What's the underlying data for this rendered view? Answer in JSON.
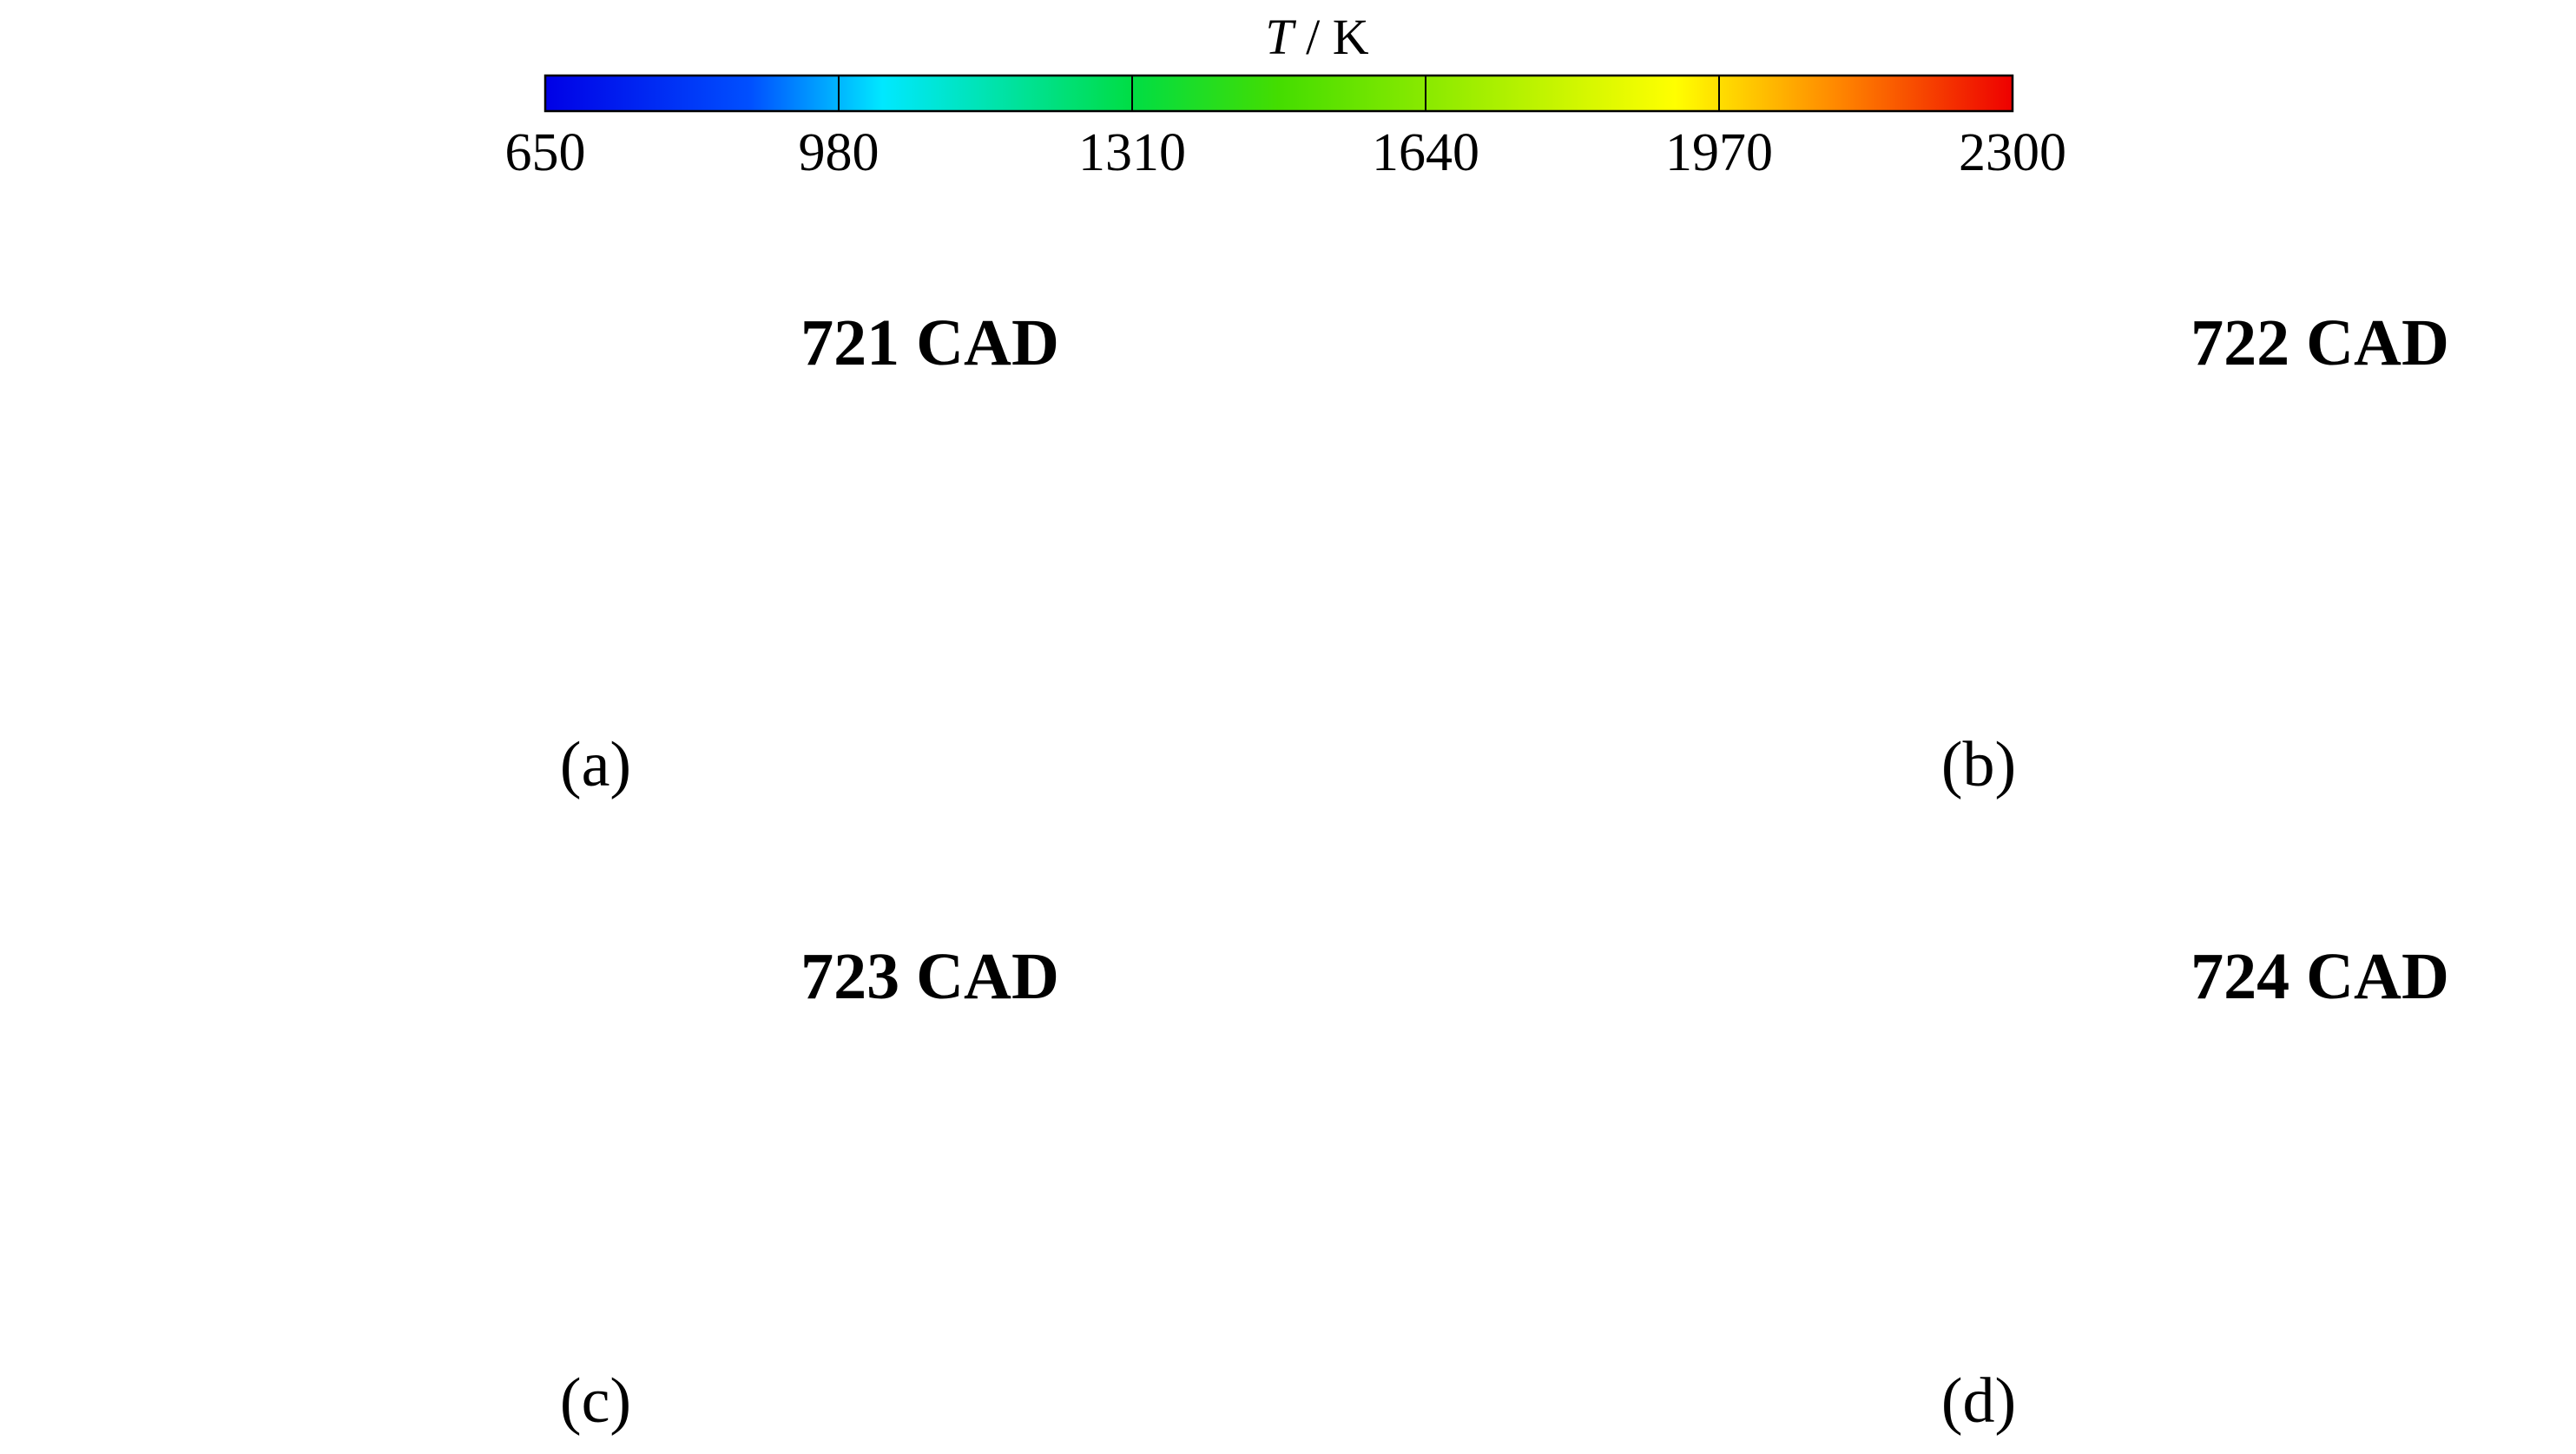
{
  "colorbar": {
    "title_italic": "T",
    "title_rest": " / K",
    "ticks": [
      "650",
      "980",
      "1310",
      "1640",
      "1970",
      "2300"
    ],
    "gradient": [
      "#0000e6",
      "#0050ff",
      "#00e8ff",
      "#00dd44",
      "#44dd00",
      "#ffff00",
      "#ff8800",
      "#ee0000"
    ]
  },
  "panels": [
    {
      "label": "721 CAD",
      "caption": "(a)"
    },
    {
      "label": "722 CAD",
      "caption": "(b)"
    },
    {
      "label": "723 CAD",
      "caption": "(c)"
    },
    {
      "label": "724 CAD",
      "caption": "(d)"
    }
  ],
  "colors": {
    "field_base": "#1e6af0",
    "cold_core": "#0b3ce0",
    "warm_spot": "#3bdcf2"
  }
}
